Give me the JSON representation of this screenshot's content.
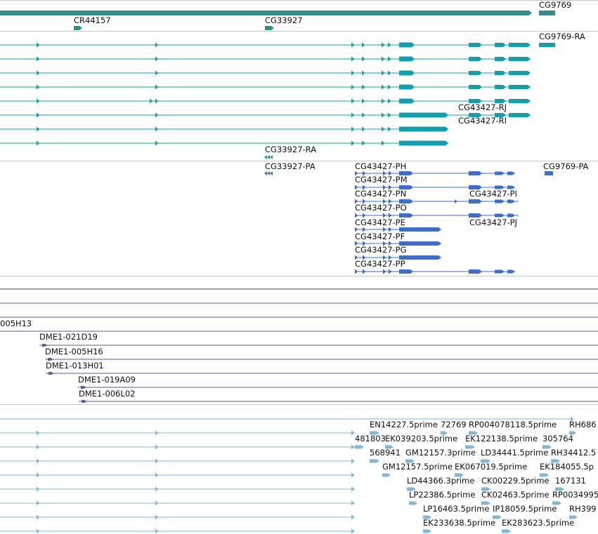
{
  "colors": {
    "background": "#ffffff",
    "separator": "#c8c8c8",
    "gene": "#2a9090",
    "mrna_forward": "#0e9fb0",
    "mrna_reverse": "#3a6fcf",
    "clone": "#6a4fa8",
    "est": "#7fb6dc",
    "label": "#111111"
  },
  "labels": {
    "gene_cg9769": "CG9769",
    "gene_cr44157": "CR44157",
    "gene_cg33927": "CG33927",
    "tx_cg9769_ra": "CG9769-RA",
    "tx_cg43427_rj": "CG43427-RJ",
    "tx_cg43427_ri": "CG43427-RI",
    "tx_cg33927_ra": "CG33927-RA",
    "pep_cg33927_pa": "CG33927-PA",
    "pep_cg43427_ph": "CG43427-PH",
    "pep_cg9769_pa": "CG9769-PA",
    "pep_cg43427_pm": "CG43427-PM",
    "pep_cg43427_pn": "CG43427-PN",
    "pep_cg43427_pi": "CG43427-PI",
    "pep_cg43427_po": "CG43427-PO",
    "pep_cg43427_pe": "CG43427-PE",
    "pep_cg43427_pj": "CG43427-PJ",
    "pep_cg43427_pf": "CG43427-PF",
    "pep_cg43427_pg": "CG43427-PG",
    "pep_cg43427_pp": "CG43427-PP",
    "clone_005h13": "005H13",
    "clone_021d19": "DME1-021D19",
    "clone_005h16": "DME1-005H16",
    "clone_013h01": "DME1-013H01",
    "clone_019a09": "DME1-019A09",
    "clone_006l02": "DME1-006L02",
    "est_en14227": "EN14227.5prime",
    "est_72769": "72769",
    "est_rp004078118": "RP004078118.5prime",
    "est_rh686": "RH686",
    "est_481803": "481803",
    "est_ek039203": "EK039203.5prime",
    "est_ek122138": "EK122138.5prime",
    "est_305764": "305764",
    "est_568941": "568941",
    "est_gm12157_3": "GM12157.3prime",
    "est_ld34441": "LD34441.5prime",
    "est_rh34412": "RH34412.5",
    "est_gm12157_5": "GM12157.5prime",
    "est_ek067019": "EK067019.5prime",
    "est_ek184055": "EK184055.5p",
    "est_ld44366": "LD44366.3prime",
    "est_ck00229": "CK00229.5prime",
    "est_167131": "167131",
    "est_lp22386": "LP22386.5prime",
    "est_ck02463": "CK02463.5prime",
    "est_rp0034995": "RP0034995",
    "est_lp16463": "LP16463.5prime",
    "est_ip18059": "IP18059.5prime",
    "est_rh399": "RH399",
    "est_ek233638": "EK233638.5prime",
    "est_ek283623": "EK283623.5prime"
  }
}
